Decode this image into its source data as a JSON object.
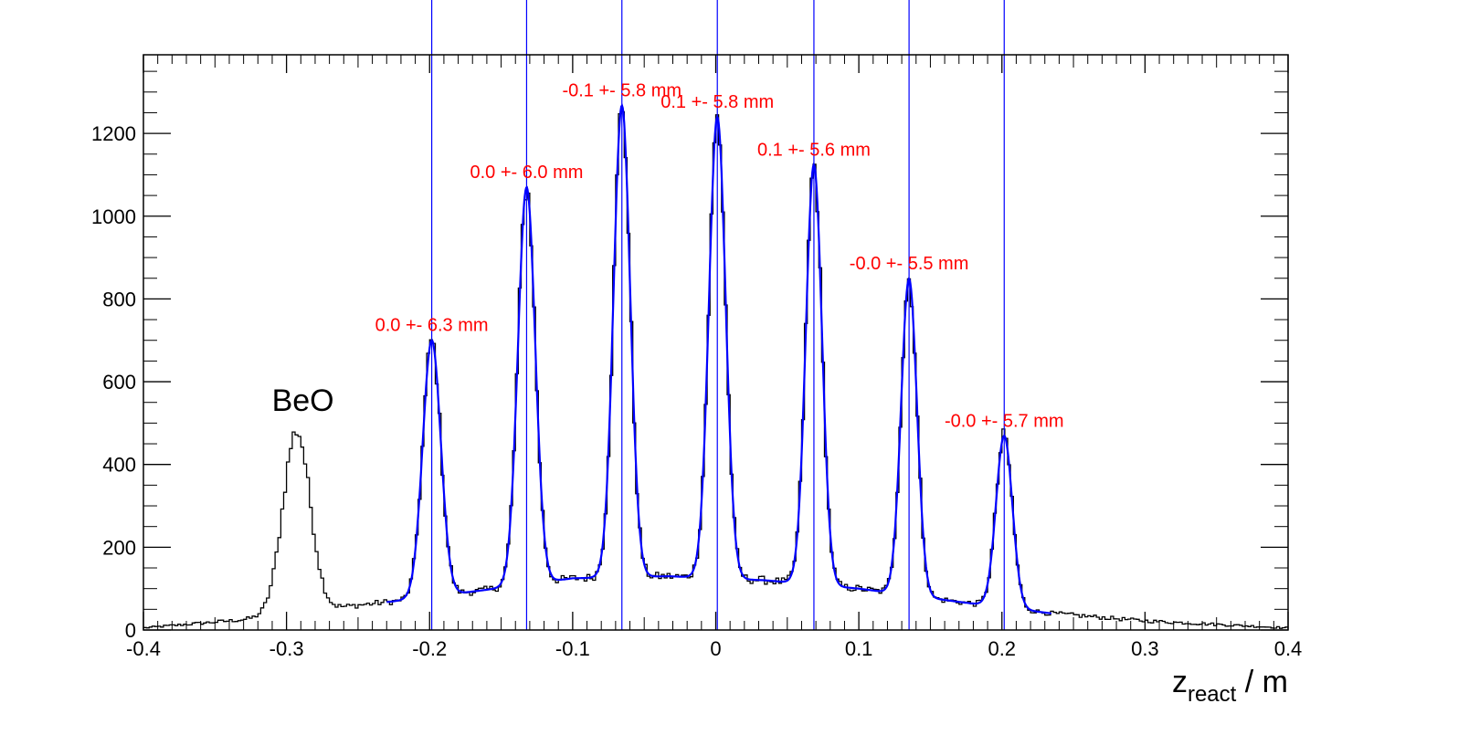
{
  "chart_data": {
    "type": "line",
    "title": "",
    "xlabel_main": "z",
    "xlabel_sub": "react",
    "xlabel_unit": " / m",
    "ylabel": "",
    "xlim": [
      -0.4,
      0.4
    ],
    "ylim": [
      0,
      1390
    ],
    "x_ticks": [
      -0.4,
      -0.3,
      -0.2,
      -0.1,
      0,
      0.1,
      0.2,
      0.3,
      0.4
    ],
    "x_tick_labels": [
      "-0.4",
      "-0.3",
      "-0.2",
      "-0.1",
      "0",
      "0.1",
      "0.2",
      "0.3",
      "0.4"
    ],
    "y_ticks": [
      0,
      200,
      400,
      600,
      800,
      1000,
      1200
    ],
    "y_tick_labels": [
      "0",
      "200",
      "400",
      "600",
      "800",
      "1000",
      "1200"
    ],
    "grid": false,
    "histogram_color": "#000000",
    "fit_color": "#0000ff",
    "label_color": "#ff0000",
    "beo_label": "BeO",
    "beo_peak": {
      "x": -0.293,
      "height": 440,
      "sigma": 0.0095
    },
    "background_levels": [
      {
        "x": -0.4,
        "y": 5
      },
      {
        "x": -0.33,
        "y": 25
      },
      {
        "x": -0.25,
        "y": 60
      },
      {
        "x": -0.21,
        "y": 75
      },
      {
        "x": -0.165,
        "y": 95
      },
      {
        "x": -0.1,
        "y": 125
      },
      {
        "x": -0.033,
        "y": 130
      },
      {
        "x": 0.035,
        "y": 120
      },
      {
        "x": 0.1,
        "y": 100
      },
      {
        "x": 0.17,
        "y": 68
      },
      {
        "x": 0.235,
        "y": 40
      },
      {
        "x": 0.3,
        "y": 22
      },
      {
        "x": 0.4,
        "y": 5
      }
    ],
    "fit_peaks": [
      {
        "x": -0.1985,
        "height": 620,
        "sigma": 0.0063,
        "label": "0.0 +- 6.3 mm"
      },
      {
        "x": -0.1322,
        "height": 960,
        "sigma": 0.006,
        "label": "0.0 +- 6.0 mm"
      },
      {
        "x": -0.0656,
        "height": 1140,
        "sigma": 0.0058,
        "label": "-0.1 +- 5.8 mm"
      },
      {
        "x": 0.0011,
        "height": 1115,
        "sigma": 0.0058,
        "label": "0.1 +- 5.8 mm"
      },
      {
        "x": 0.0686,
        "height": 1015,
        "sigma": 0.0056,
        "label": "0.1 +- 5.6 mm"
      },
      {
        "x": 0.1351,
        "height": 765,
        "sigma": 0.0055,
        "label": "-0.0 +- 5.5 mm"
      },
      {
        "x": 0.2016,
        "height": 415,
        "sigma": 0.0057,
        "label": "-0.0 +- 5.7 mm"
      }
    ],
    "fit_range": [
      -0.23,
      0.235
    ],
    "bin_width": 0.002
  }
}
